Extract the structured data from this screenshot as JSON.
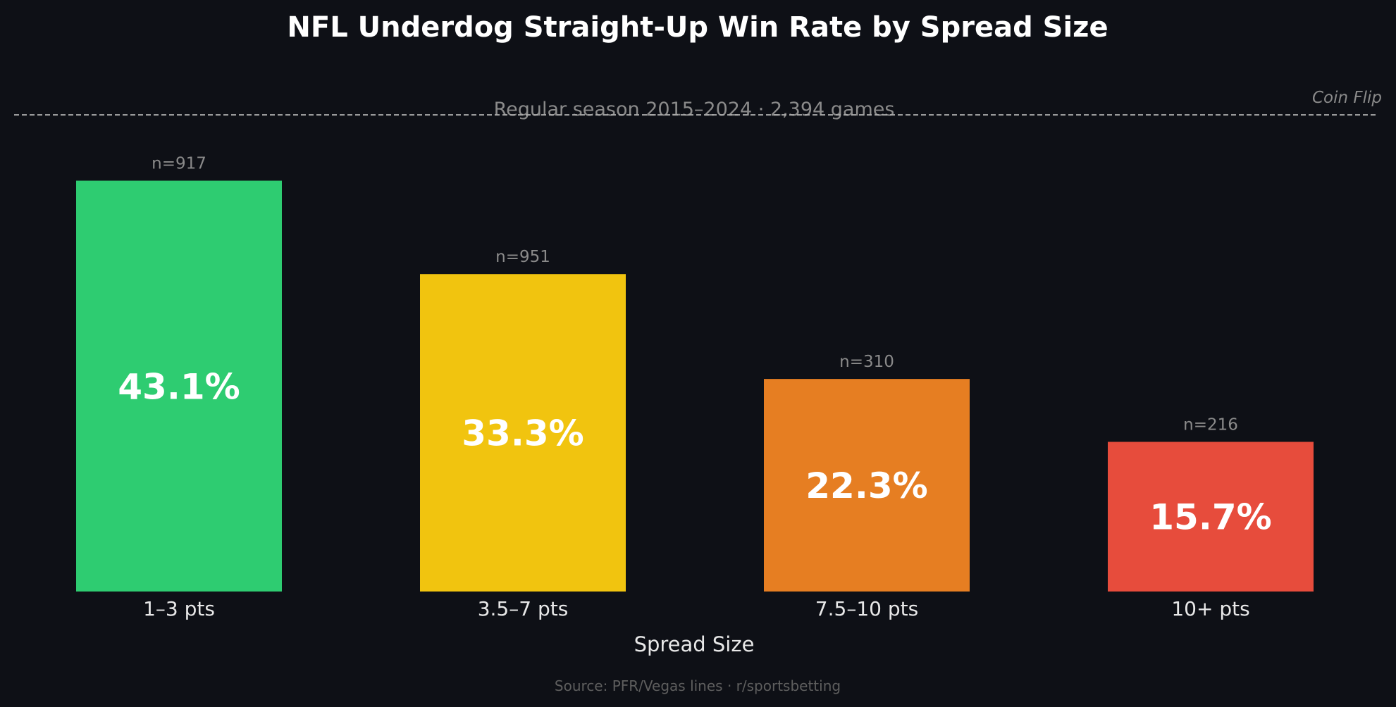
{
  "chart_data": {
    "type": "bar",
    "title": "NFL Underdog Straight-Up Win Rate by Spread Size",
    "subtitle": "Regular season 2015–2024 · 2,394 games",
    "xlabel": "Spread Size",
    "ylabel": "",
    "ylim": [
      0,
      54
    ],
    "grid": false,
    "categories": [
      "1–3 pts",
      "3.5–7 pts",
      "7.5–10 pts",
      "10+ pts"
    ],
    "values": [
      43.1,
      33.3,
      22.3,
      15.7
    ],
    "value_labels": [
      "43.1%",
      "33.3%",
      "22.3%",
      "15.7%"
    ],
    "counts": [
      "n=917",
      "n=951",
      "n=310",
      "n=216"
    ],
    "colors": [
      "#2ecc71",
      "#f1c40f",
      "#e67e22",
      "#e74c3c"
    ],
    "reference_line": {
      "value": 50,
      "label": "Coin Flip",
      "color": "#aaaaaa"
    },
    "source": "Source: PFR/Vegas lines · r/sportsbetting"
  }
}
